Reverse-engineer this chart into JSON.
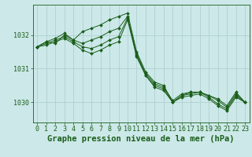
{
  "bg_color": "#cce8e8",
  "grid_color": "#aacccc",
  "line_color": "#1a5e1a",
  "title": "Graphe pression niveau de la mer (hPa)",
  "xlabel_hours": [
    0,
    1,
    2,
    3,
    4,
    5,
    6,
    7,
    8,
    9,
    10,
    11,
    12,
    13,
    14,
    15,
    16,
    17,
    18,
    19,
    20,
    21,
    22,
    23
  ],
  "yticks": [
    1030,
    1031,
    1032
  ],
  "ylim": [
    1029.4,
    1032.9
  ],
  "xlim": [
    -0.5,
    23.5
  ],
  "series": [
    [
      1031.65,
      1031.8,
      1031.75,
      1032.0,
      1031.85,
      1032.1,
      1032.2,
      1032.3,
      1032.45,
      1032.55,
      1032.65,
      1031.5,
      1030.9,
      1030.6,
      1030.5,
      1030.0,
      1030.2,
      1030.3,
      1030.3,
      1030.2,
      1030.1,
      1029.9,
      1030.3,
      1030.0
    ],
    [
      1031.65,
      1031.8,
      1031.9,
      1032.05,
      1031.85,
      1031.75,
      1031.85,
      1031.95,
      1032.1,
      1032.2,
      1032.55,
      1031.45,
      1030.85,
      1030.55,
      1030.45,
      1030.05,
      1030.25,
      1030.3,
      1030.3,
      1030.2,
      1030.05,
      1029.85,
      1030.25,
      1030.0
    ],
    [
      1031.65,
      1031.75,
      1031.85,
      1031.95,
      1031.8,
      1031.65,
      1031.6,
      1031.7,
      1031.85,
      1031.95,
      1032.5,
      1031.4,
      1030.8,
      1030.5,
      1030.4,
      1030.0,
      1030.2,
      1030.25,
      1030.3,
      1030.15,
      1029.95,
      1029.8,
      1030.2,
      1030.0
    ],
    [
      1031.65,
      1031.7,
      1031.8,
      1031.9,
      1031.75,
      1031.55,
      1031.45,
      1031.55,
      1031.7,
      1031.8,
      1032.45,
      1031.35,
      1030.8,
      1030.45,
      1030.35,
      1030.0,
      1030.15,
      1030.2,
      1030.25,
      1030.1,
      1029.9,
      1029.75,
      1030.15,
      1030.0
    ]
  ],
  "title_fontsize": 7.5,
  "tick_fontsize": 6,
  "fig_width": 3.2,
  "fig_height": 2.0,
  "dpi": 100
}
